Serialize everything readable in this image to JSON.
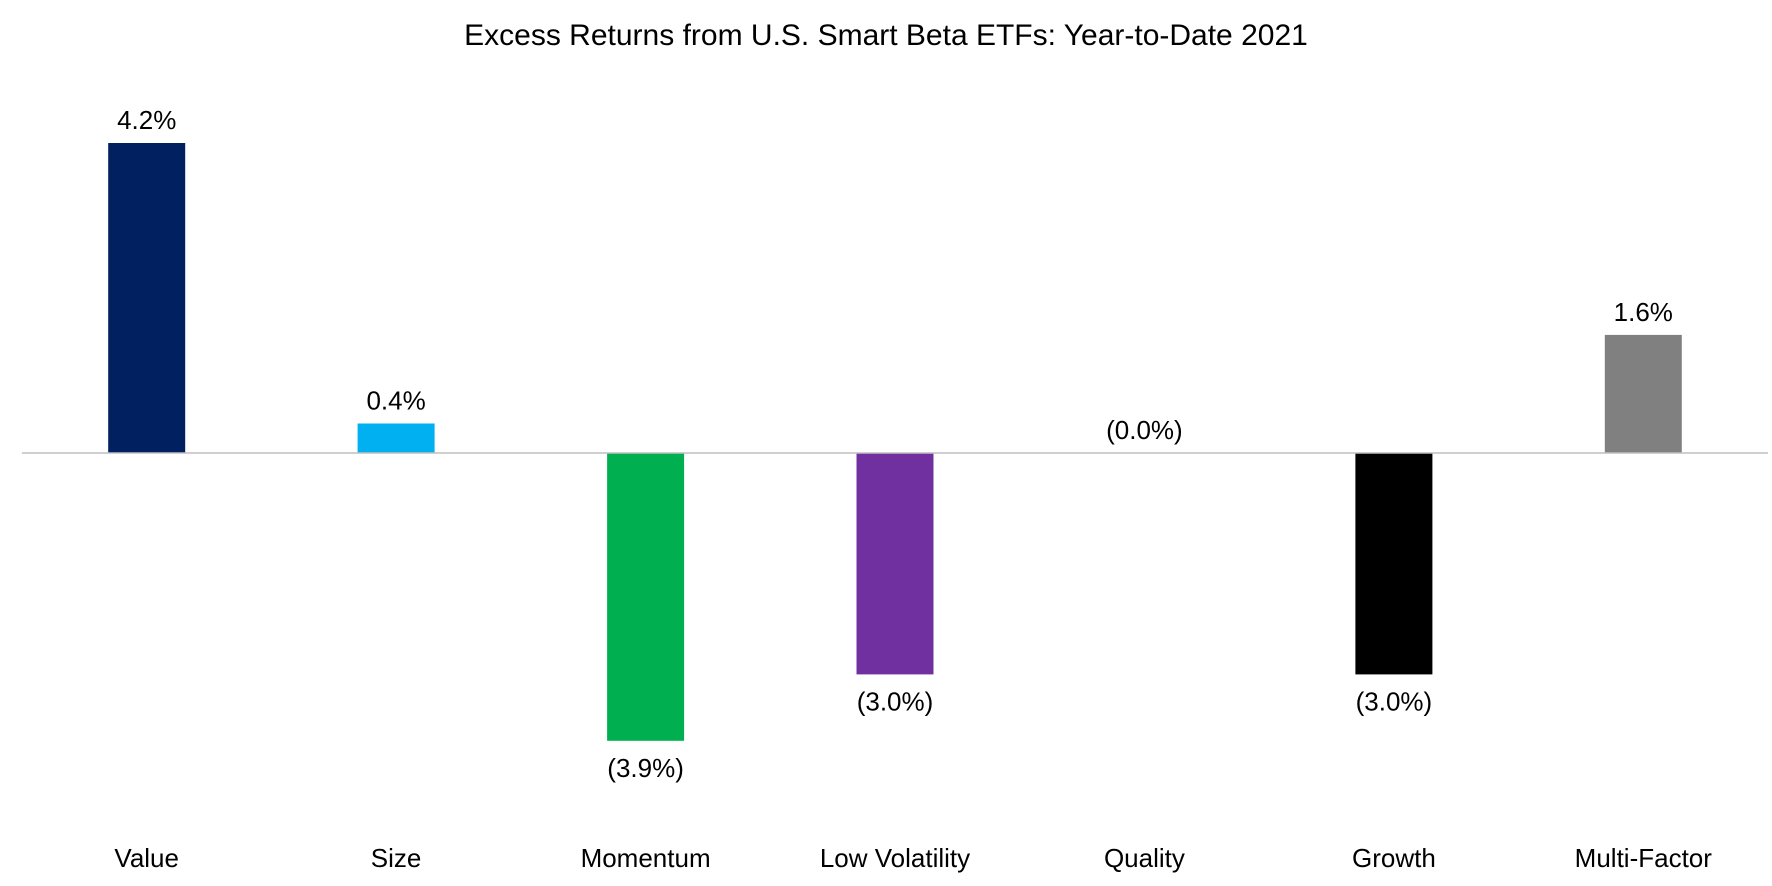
{
  "chart_data": {
    "type": "bar",
    "title": "Excess Returns from U.S. Smart Beta ETFs: Year-to-Date 2021",
    "xlabel": "",
    "ylabel": "",
    "categories": [
      "Value",
      "Size",
      "Momentum",
      "Low Volatility",
      "Quality",
      "Growth",
      "Multi-Factor"
    ],
    "values": [
      4.2,
      0.4,
      -3.9,
      -3.0,
      -0.0,
      -3.0,
      1.6
    ],
    "value_labels": [
      "4.2%",
      "0.4%",
      "(3.9%)",
      "(3.0%)",
      "(0.0%)",
      "(3.0%)",
      "1.6%"
    ],
    "colors": [
      "#002060",
      "#00B0F0",
      "#00B050",
      "#7030A0",
      "#FFC000",
      "#000000",
      "#808080"
    ],
    "ylim": [
      -5.2,
      5.2
    ],
    "grid": false,
    "legend": "none",
    "zero_line_color": "#BFBFBF"
  }
}
